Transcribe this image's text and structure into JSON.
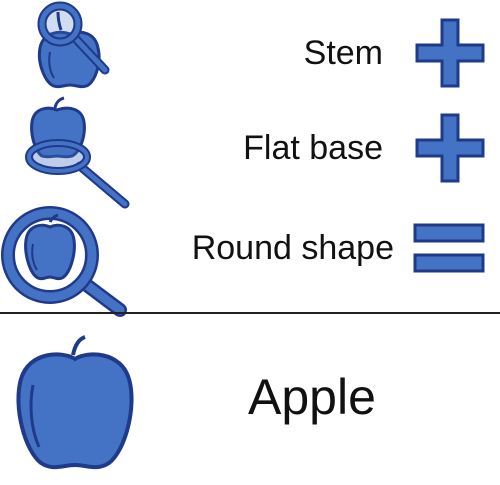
{
  "rows": [
    {
      "label": "Stem",
      "operator": "plus",
      "icon": "apple-with-magnifier-on-stem-icon"
    },
    {
      "label": "Flat base",
      "operator": "plus",
      "icon": "apple-with-magnifier-on-base-icon"
    },
    {
      "label": "Round shape",
      "operator": "equals",
      "icon": "apple-inside-magnifier-icon"
    }
  ],
  "result": {
    "label": "Apple",
    "icon": "apple-icon"
  },
  "colors": {
    "fill": "#4472C4",
    "stroke": "#1F3A8A",
    "text": "#111111",
    "divider": "#222222"
  }
}
